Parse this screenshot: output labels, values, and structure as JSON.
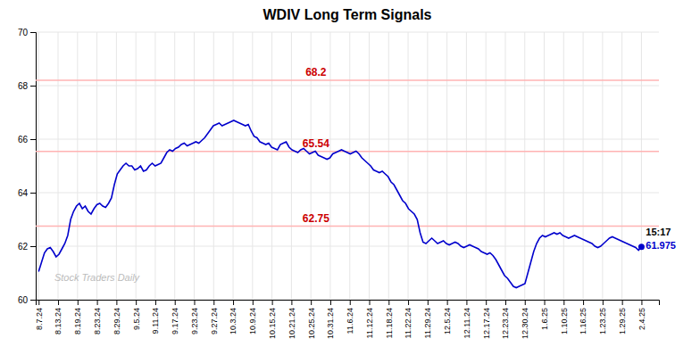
{
  "chart_data": {
    "type": "line",
    "title": "WDIV Long Term Signals",
    "color": "#0000cc",
    "grid": true,
    "ylim": [
      60,
      70
    ],
    "yticks": [
      60,
      62,
      64,
      66,
      68,
      70
    ],
    "xlim": [
      -1,
      213
    ],
    "xticks": [
      {
        "value": 0,
        "label": "8.7.24"
      },
      {
        "value": 6.6774,
        "label": "8.13.24"
      },
      {
        "value": 13.3548,
        "label": "8.19.24"
      },
      {
        "value": 20.0323,
        "label": "8.23.24"
      },
      {
        "value": 26.7097,
        "label": "8.29.24"
      },
      {
        "value": 33.3871,
        "label": "9.5.24"
      },
      {
        "value": 40.0645,
        "label": "9.11.24"
      },
      {
        "value": 46.7419,
        "label": "9.17.24"
      },
      {
        "value": 53.4194,
        "label": "9.23.24"
      },
      {
        "value": 60.0968,
        "label": "9.27.24"
      },
      {
        "value": 66.7742,
        "label": "10.3.24"
      },
      {
        "value": 73.4516,
        "label": "10.9.24"
      },
      {
        "value": 80.129,
        "label": "10.15.24"
      },
      {
        "value": 86.8065,
        "label": "10.21.24"
      },
      {
        "value": 93.4839,
        "label": "10.25.24"
      },
      {
        "value": 100.1613,
        "label": "10.31.24"
      },
      {
        "value": 106.8387,
        "label": "11.6.24"
      },
      {
        "value": 113.5161,
        "label": "11.12.24"
      },
      {
        "value": 120.1935,
        "label": "11.18.24"
      },
      {
        "value": 126.871,
        "label": "11.22.24"
      },
      {
        "value": 133.5484,
        "label": "11.29.24"
      },
      {
        "value": 140.2258,
        "label": "12.5.24"
      },
      {
        "value": 146.9032,
        "label": "12.11.24"
      },
      {
        "value": 153.5806,
        "label": "12.17.24"
      },
      {
        "value": 160.2581,
        "label": "12.23.24"
      },
      {
        "value": 166.9355,
        "label": "12.30.24"
      },
      {
        "value": 173.6129,
        "label": "1.6.25"
      },
      {
        "value": 180.2903,
        "label": "1.10.25"
      },
      {
        "value": 186.9677,
        "label": "1.16.25"
      },
      {
        "value": 193.6452,
        "label": "1.23.25"
      },
      {
        "value": 200.3226,
        "label": "1.29.25"
      },
      {
        "value": 207,
        "label": "2.4.25"
      }
    ],
    "hlines": [
      {
        "y": 68.2,
        "label": "68.2",
        "color": "#ffb3b3",
        "label_color": "#cc0000"
      },
      {
        "y": 65.54,
        "label": "65.54",
        "color": "#ffb3b3",
        "label_color": "#cc0000"
      },
      {
        "y": 62.75,
        "label": "62.75",
        "color": "#ffb3b3",
        "label_color": "#cc0000"
      }
    ],
    "last_point_labels": [
      "15:17",
      "61.975"
    ],
    "watermark": "Stock Traders Daily",
    "values": [
      61.05,
      61.4,
      61.75,
      61.9,
      61.95,
      61.8,
      61.6,
      61.7,
      61.9,
      62.1,
      62.4,
      63.0,
      63.3,
      63.5,
      63.6,
      63.4,
      63.5,
      63.3,
      63.2,
      63.4,
      63.55,
      63.6,
      63.5,
      63.45,
      63.6,
      63.8,
      64.3,
      64.7,
      64.85,
      65.0,
      65.1,
      65.0,
      65.0,
      64.85,
      64.9,
      65.0,
      64.8,
      64.85,
      65.0,
      65.1,
      65.0,
      65.05,
      65.1,
      65.3,
      65.5,
      65.6,
      65.55,
      65.65,
      65.7,
      65.8,
      65.85,
      65.75,
      65.8,
      65.85,
      65.9,
      65.85,
      65.95,
      66.05,
      66.2,
      66.35,
      66.5,
      66.55,
      66.6,
      66.5,
      66.55,
      66.6,
      66.65,
      66.7,
      66.65,
      66.6,
      66.55,
      66.5,
      66.55,
      66.3,
      66.1,
      66.05,
      65.9,
      65.85,
      65.8,
      65.85,
      65.7,
      65.65,
      65.6,
      65.8,
      65.85,
      65.9,
      65.7,
      65.6,
      65.55,
      65.5,
      65.6,
      65.65,
      65.55,
      65.45,
      65.5,
      65.55,
      65.4,
      65.35,
      65.3,
      65.25,
      65.3,
      65.45,
      65.5,
      65.55,
      65.6,
      65.55,
      65.5,
      65.45,
      65.5,
      65.55,
      65.45,
      65.3,
      65.2,
      65.1,
      65.0,
      64.85,
      64.8,
      64.75,
      64.8,
      64.7,
      64.6,
      64.4,
      64.3,
      64.1,
      63.9,
      63.7,
      63.6,
      63.4,
      63.3,
      63.2,
      63.0,
      62.5,
      62.15,
      62.1,
      62.2,
      62.3,
      62.2,
      62.1,
      62.15,
      62.2,
      62.1,
      62.05,
      62.1,
      62.15,
      62.1,
      62.0,
      61.95,
      62.0,
      62.05,
      62.0,
      61.95,
      61.9,
      61.8,
      61.75,
      61.7,
      61.75,
      61.65,
      61.5,
      61.3,
      61.1,
      60.9,
      60.8,
      60.65,
      60.5,
      60.45,
      60.5,
      60.55,
      60.6,
      61.0,
      61.4,
      61.8,
      62.1,
      62.3,
      62.4,
      62.35,
      62.4,
      62.45,
      62.5,
      62.45,
      62.5,
      62.4,
      62.35,
      62.3,
      62.35,
      62.4,
      62.35,
      62.3,
      62.25,
      62.2,
      62.15,
      62.1,
      62.0,
      61.95,
      62.0,
      62.1,
      62.2,
      62.3,
      62.35,
      62.3,
      62.25,
      62.2,
      62.15,
      62.1,
      62.05,
      62.0,
      61.95,
      61.85,
      61.975
    ]
  }
}
